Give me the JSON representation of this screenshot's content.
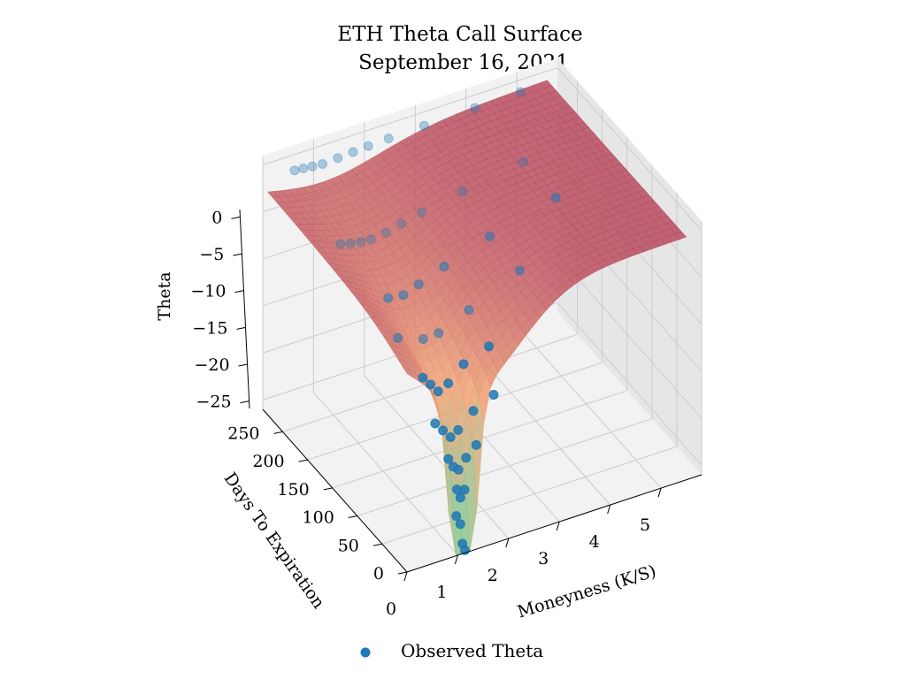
{
  "chart_data": {
    "type": "surface3d",
    "title": "ETH Theta Call Surface",
    "subtitle": "September 16, 2021",
    "xlabel": "Moneyness (K/S)",
    "ylabel": "Days To Expiration",
    "zlabel": "Theta",
    "x_ticks": [
      "0",
      "1",
      "2",
      "3",
      "4",
      "5"
    ],
    "y_ticks": [
      "0",
      "50",
      "100",
      "150",
      "200",
      "250"
    ],
    "z_ticks": [
      "−25",
      "−20",
      "−15",
      "−10",
      "−5",
      "0"
    ],
    "xlim": [
      0,
      5.8
    ],
    "ylim": [
      0,
      290
    ],
    "zlim": [
      -26,
      1
    ],
    "grid": true,
    "legend": {
      "position": "bottom-center",
      "entries": [
        "Observed Theta"
      ]
    },
    "colors": {
      "points": "#1f77b4",
      "surface_flat": "#b5455b",
      "surface_mid": "#f2a070",
      "surface_deep": "#7fc98f",
      "pane_back": "#f2f2f2",
      "pane_side": "#e6e6e6",
      "grid": "#cccccc"
    },
    "observed_points": [
      {
        "x": 0.45,
        "y": 272,
        "z": -0.3
      },
      {
        "x": 0.62,
        "y": 272,
        "z": -0.4
      },
      {
        "x": 0.8,
        "y": 272,
        "z": -0.5
      },
      {
        "x": 1.0,
        "y": 272,
        "z": -0.6
      },
      {
        "x": 1.3,
        "y": 272,
        "z": -0.5
      },
      {
        "x": 1.6,
        "y": 272,
        "z": -0.4
      },
      {
        "x": 1.9,
        "y": 272,
        "z": -0.3
      },
      {
        "x": 2.3,
        "y": 272,
        "z": -0.2
      },
      {
        "x": 3.0,
        "y": 272,
        "z": -0.1
      },
      {
        "x": 4.0,
        "y": 272,
        "z": 0.0
      },
      {
        "x": 4.9,
        "y": 272,
        "z": 0.1
      },
      {
        "x": 0.6,
        "y": 195,
        "z": -3.8
      },
      {
        "x": 0.8,
        "y": 195,
        "z": -4.1
      },
      {
        "x": 1.0,
        "y": 195,
        "z": -4.3
      },
      {
        "x": 1.2,
        "y": 195,
        "z": -4.4
      },
      {
        "x": 1.5,
        "y": 195,
        "z": -4.2
      },
      {
        "x": 1.8,
        "y": 195,
        "z": -3.8
      },
      {
        "x": 2.2,
        "y": 195,
        "z": -3.3
      },
      {
        "x": 3.0,
        "y": 195,
        "z": -2.5
      },
      {
        "x": 4.2,
        "y": 195,
        "z": -1.5
      },
      {
        "x": 1.0,
        "y": 140,
        "z": -7.0
      },
      {
        "x": 1.3,
        "y": 140,
        "z": -7.2
      },
      {
        "x": 1.6,
        "y": 140,
        "z": -6.6
      },
      {
        "x": 2.1,
        "y": 140,
        "z": -5.6
      },
      {
        "x": 3.0,
        "y": 140,
        "z": -4.0
      },
      {
        "x": 4.3,
        "y": 140,
        "z": -2.2
      },
      {
        "x": 1.3,
        "y": 100,
        "z": -9.5
      },
      {
        "x": 1.6,
        "y": 100,
        "z": -9.4
      },
      {
        "x": 2.2,
        "y": 100,
        "z": -8.0
      },
      {
        "x": 3.2,
        "y": 100,
        "z": -5.6
      },
      {
        "x": 0.8,
        "y": 100,
        "z": -8.5
      },
      {
        "x": 0.9,
        "y": 60,
        "z": -10.5
      },
      {
        "x": 1.05,
        "y": 60,
        "z": -11.5
      },
      {
        "x": 1.2,
        "y": 60,
        "z": -12.5
      },
      {
        "x": 1.4,
        "y": 60,
        "z": -12.0
      },
      {
        "x": 1.7,
        "y": 60,
        "z": -10.5
      },
      {
        "x": 2.2,
        "y": 60,
        "z": -9.5
      },
      {
        "x": 0.85,
        "y": 30,
        "z": -13.5
      },
      {
        "x": 1.0,
        "y": 30,
        "z": -14.5
      },
      {
        "x": 1.15,
        "y": 30,
        "z": -15.5
      },
      {
        "x": 1.3,
        "y": 30,
        "z": -15.0
      },
      {
        "x": 1.6,
        "y": 30,
        "z": -13.5
      },
      {
        "x": 2.0,
        "y": 30,
        "z": -12.5
      },
      {
        "x": 0.95,
        "y": 14,
        "z": -16.5
      },
      {
        "x": 1.05,
        "y": 14,
        "z": -17.5
      },
      {
        "x": 1.15,
        "y": 14,
        "z": -18.0
      },
      {
        "x": 1.3,
        "y": 14,
        "z": -17.0
      },
      {
        "x": 1.5,
        "y": 14,
        "z": -16.0
      },
      {
        "x": 1.05,
        "y": 7,
        "z": -19.5
      },
      {
        "x": 1.12,
        "y": 7,
        "z": -20.5
      },
      {
        "x": 1.2,
        "y": 7,
        "z": -19.8
      },
      {
        "x": 1.0,
        "y": 3,
        "z": -22.0
      },
      {
        "x": 1.08,
        "y": 3,
        "z": -23.0
      },
      {
        "x": 1.1,
        "y": 1,
        "z": -25.0
      },
      {
        "x": 1.15,
        "y": 1,
        "z": -25.8
      }
    ]
  }
}
